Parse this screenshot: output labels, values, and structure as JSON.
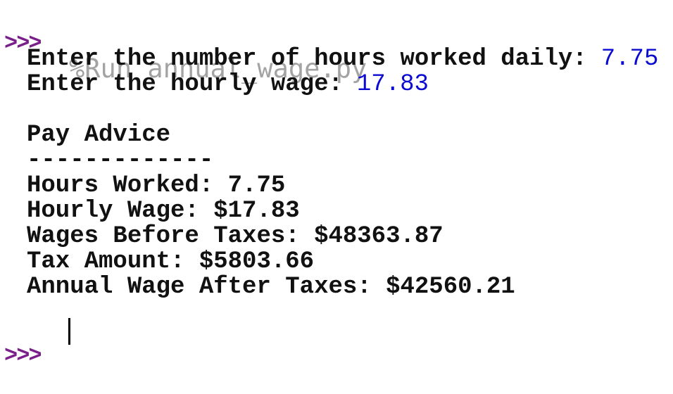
{
  "shell": {
    "prompt": ">>>",
    "command": "%Run annual_wage.py",
    "inputs": [
      {
        "prompt": "Enter the number of hours worked daily:",
        "value": "7.75"
      },
      {
        "prompt": "Enter the hourly wage:",
        "value": "17.83"
      }
    ],
    "output": [
      "Pay Advice",
      "-------------",
      "Hours Worked: 7.75",
      "Hourly Wage: $17.83",
      "Wages Before Taxes: $48363.87",
      "Tax Amount: $5803.66",
      "Annual Wage After Taxes: $42560.21"
    ]
  }
}
